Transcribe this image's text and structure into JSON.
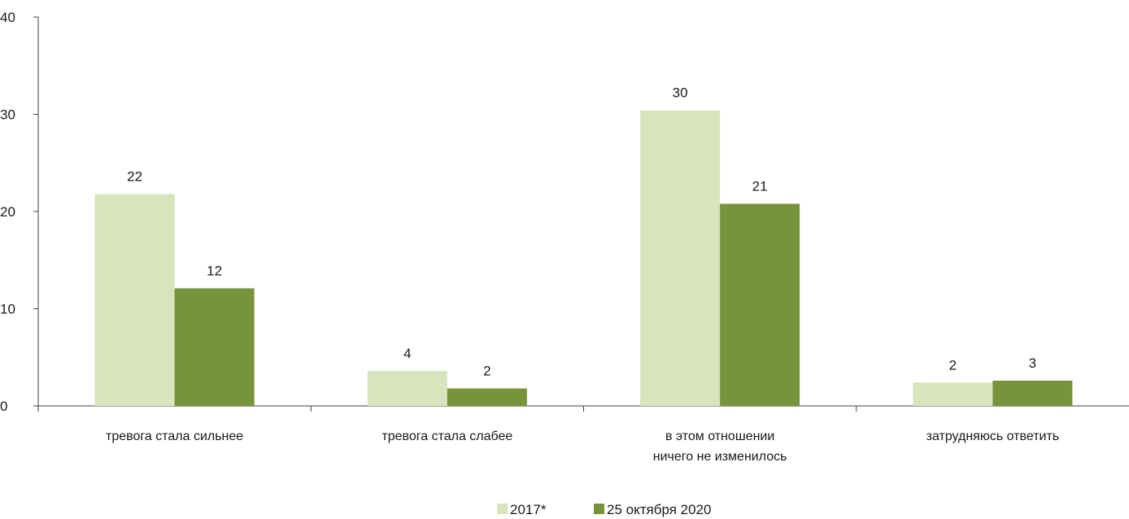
{
  "chart_data": {
    "type": "bar",
    "categories": [
      [
        "тревога стала сильнее"
      ],
      [
        "тревога стала слабее"
      ],
      [
        "в этом отношении",
        "ничего не изменилось"
      ],
      [
        "затрудняюсь ответить"
      ]
    ],
    "series": [
      {
        "name": "2017*",
        "color": "#d8e4bc",
        "values": [
          21.8,
          3.6,
          30.4,
          2.4
        ],
        "labels": [
          "22",
          "4",
          "30",
          "2"
        ]
      },
      {
        "name": "25 октября 2020",
        "color": "#77933c",
        "values": [
          12.1,
          1.8,
          20.8,
          2.6
        ],
        "labels": [
          "12",
          "2",
          "21",
          "3"
        ]
      }
    ],
    "ylim": [
      0,
      40
    ],
    "yticks": [
      0,
      10,
      20,
      30,
      40
    ],
    "ytick_labels": [
      "0",
      "10",
      "20",
      "30",
      "40"
    ],
    "grid": false,
    "legend_position": "bottom-center"
  }
}
